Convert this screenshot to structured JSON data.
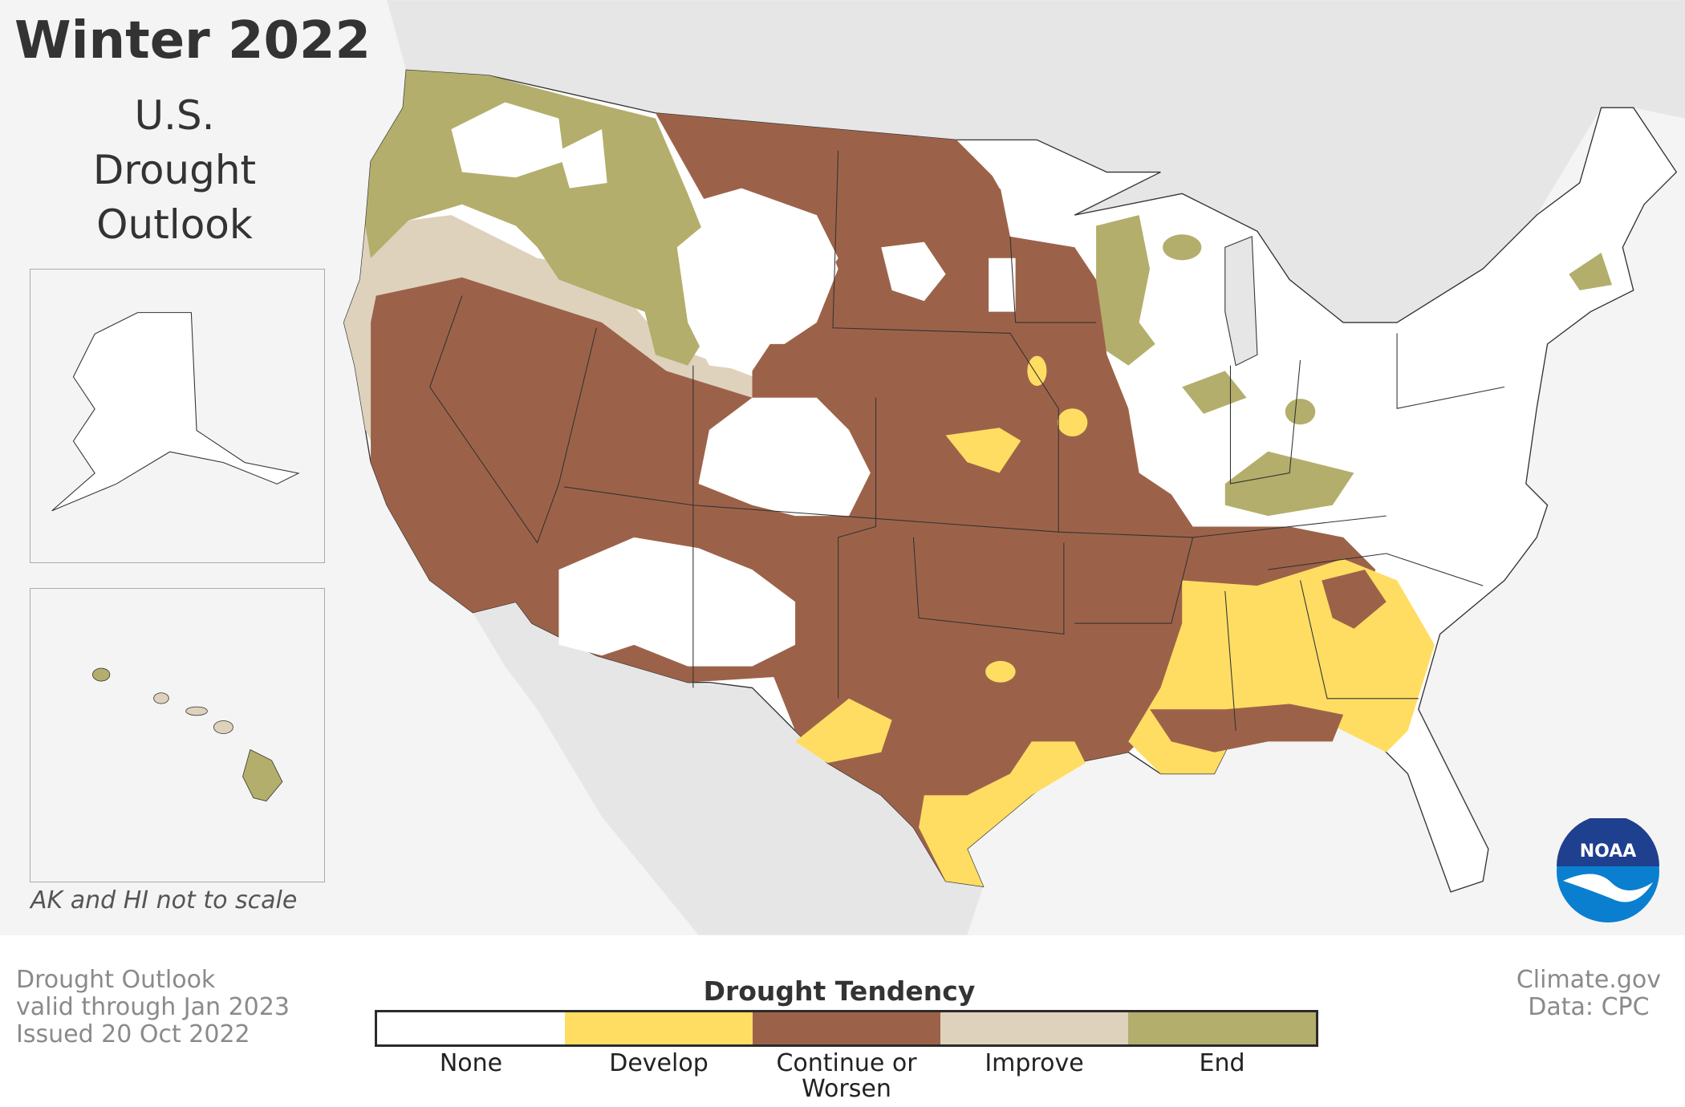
{
  "title": "Winter 2022",
  "subtitle_lines": [
    "U.S.",
    "Drought",
    "Outlook"
  ],
  "inset_note": "AK and HI not to scale",
  "info_lines": [
    "Drought Outlook",
    "valid through Jan 2023",
    "Issued 20 Oct 2022"
  ],
  "credit_lines": [
    "Climate.gov",
    "Data: CPC"
  ],
  "logo_text": "NOAA",
  "legend": {
    "title": "Drought Tendency",
    "categories": [
      {
        "label": "None",
        "color": "#ffffff"
      },
      {
        "label": "Develop",
        "color": "#ffdd63"
      },
      {
        "label": "Continue or Worsen",
        "color": "#9c6249"
      },
      {
        "label": "Improve",
        "color": "#ded2bc"
      },
      {
        "label": "End",
        "color": "#b3ae6b"
      }
    ],
    "continue_line1": "Continue or",
    "continue_line2": "Worsen"
  }
}
